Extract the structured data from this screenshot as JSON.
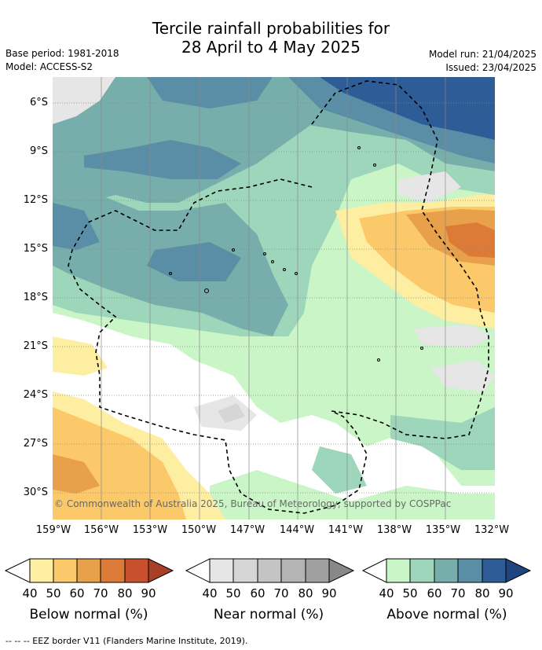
{
  "header": {
    "title_line1": "Tercile rainfall probabilities for",
    "title_line2": "28 April to 4 May 2025",
    "base_period": "Base period: 1981-2018",
    "model": "Model: ACCESS-S2",
    "model_run": "Model run: 21/04/2025",
    "issued": "Issued: 23/04/2025"
  },
  "map": {
    "lat_labels": [
      "6°S",
      "9°S",
      "12°S",
      "15°S",
      "18°S",
      "21°S",
      "24°S",
      "27°S",
      "30°S"
    ],
    "lon_labels": [
      "159°W",
      "156°W",
      "153°W",
      "150°W",
      "147°W",
      "144°W",
      "141°W",
      "138°W",
      "135°W",
      "132°W"
    ],
    "copyright": "© Commonwealth of Australia 2025, Bureau of Meteorology, supported by COSPPac",
    "colors": {
      "below": [
        "#fdeea2",
        "#fbc96a",
        "#e8a04a",
        "#dc7a38",
        "#c8502c"
      ],
      "near": [
        "#e6e6e6",
        "#d6d6d6",
        "#c4c4c4",
        "#b4b4b4",
        "#a0a0a0"
      ],
      "above": [
        "#c9f5c7",
        "#9dd6bb",
        "#77aeab",
        "#5a8ea6",
        "#2e5c96"
      ]
    }
  },
  "colorbars": [
    {
      "label": "Below normal (%)",
      "ticks": [
        "40",
        "50",
        "60",
        "70",
        "80",
        "90"
      ]
    },
    {
      "label": "Near normal (%)",
      "ticks": [
        "40",
        "50",
        "60",
        "70",
        "80",
        "90"
      ]
    },
    {
      "label": "Above normal (%)",
      "ticks": [
        "40",
        "50",
        "60",
        "70",
        "80",
        "90"
      ]
    }
  ],
  "footnote": "--  --  -- EEZ border V11 (Flanders Marine Institute, 2019)."
}
